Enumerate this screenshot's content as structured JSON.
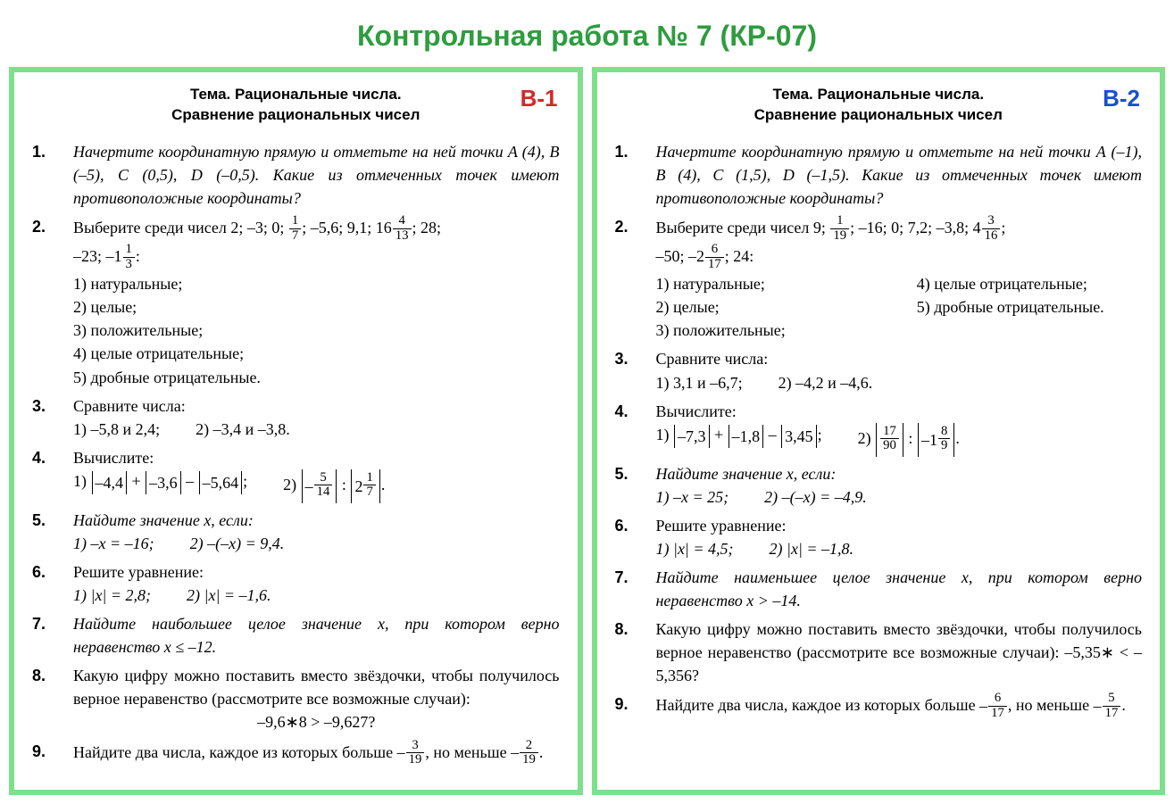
{
  "page": {
    "title": "Контрольная работа № 7 (КР-07)",
    "title_color": "#2e9c3f",
    "panel_border_color": "#7de08b",
    "panel_border_width": 6,
    "background": "#ffffff"
  },
  "variants": [
    {
      "badge": "В-1",
      "badge_color": "#d02a2a",
      "topic_label": "Тема.",
      "topic_line1": "Рациональные числа.",
      "topic_line2": "Сравнение рациональных чисел",
      "tasks": {
        "t1": "Начертите координатную прямую и отметьте на ней точки A (4), B (–5), C (0,5), D (–0,5). Какие из отмеченных точек имеют противоположные координаты?",
        "t2_lead_a": "Выберите среди чисел 2; –3; 0; ",
        "t2_frac1_num": "1",
        "t2_frac1_den": "7",
        "t2_lead_b": "; –5,6; 9,1; 16",
        "t2_frac2_num": "4",
        "t2_frac2_den": "13",
        "t2_lead_c": "; 28;",
        "t2_line2_a": "–23; –1",
        "t2_frac3_num": "1",
        "t2_frac3_den": "3",
        "t2_line2_b": ":",
        "t2_opt1": "1) натуральные;",
        "t2_opt2": "2) целые;",
        "t2_opt3": "3) положительные;",
        "t2_opt4": "4) целые отрицательные;",
        "t2_opt5": "5) дробные отрицательные.",
        "t3_lead": "Сравните числа:",
        "t3_opt1": "1) –5,8 и 2,4;",
        "t3_opt2": "2) –3,4 и –3,8.",
        "t4_lead": "Вычислите:",
        "t4_1_pre": "1) ",
        "t4_1_a": "–4,4",
        "t4_1_plus": " + ",
        "t4_1_b": "–3,6",
        "t4_1_minus": " – ",
        "t4_1_c": "–5,64",
        "t4_1_post": ";",
        "t4_2_pre": "2) ",
        "t4_2_f1_sign": "–",
        "t4_2_f1_num": "5",
        "t4_2_f1_den": "14",
        "t4_2_colon": " : ",
        "t4_2_f2_whole": "2",
        "t4_2_f2_num": "1",
        "t4_2_f2_den": "7",
        "t4_2_post": ".",
        "t5_lead": "Найдите значение x, если:",
        "t5_opt1": "1) –x = –16;",
        "t5_opt2": "2) –(–x) = 9,4.",
        "t6_lead": "Решите уравнение:",
        "t6_opt1": "1) |x| = 2,8;",
        "t6_opt2": "2) |x| = –1,6.",
        "t7": "Найдите наибольшее целое значение x, при котором верно неравенство x ≤ –12.",
        "t8_lead": "Какую цифру можно поставить вместо звёздочки, чтобы получилось верное неравенство (рассмотрите все возможные случаи):",
        "t8_expr": "–9,6∗8 > –9,627?",
        "t9_a": "Найдите два числа, каждое из которых больше ",
        "t9_f1_sign": "–",
        "t9_f1_num": "3",
        "t9_f1_den": "19",
        "t9_b": ", но меньше ",
        "t9_f2_sign": "–",
        "t9_f2_num": "2",
        "t9_f2_den": "19",
        "t9_c": "."
      }
    },
    {
      "badge": "В-2",
      "badge_color": "#1a4fd0",
      "topic_label": "Тема.",
      "topic_line1": "Рациональные числа.",
      "topic_line2": "Сравнение рациональных чисел",
      "tasks": {
        "t1": "Начертите координатную прямую и отметьте на ней точки A (–1), B (4), C (1,5), D (–1,5). Какие из отмеченных точек имеют противоположные координаты?",
        "t2_lead_a": "Выберите среди чисел 9; ",
        "t2_frac1_num": "1",
        "t2_frac1_den": "19",
        "t2_lead_b": "; –16; 0; 7,2; –3,8; 4",
        "t2_frac2_num": "3",
        "t2_frac2_den": "16",
        "t2_lead_c": ";",
        "t2_line2_a": "–50; –2",
        "t2_frac3_num": "6",
        "t2_frac3_den": "17",
        "t2_line2_b": "; 24:",
        "t2_opt1": "1) натуральные;",
        "t2_opt2": "2) целые;",
        "t2_opt3": "3) положительные;",
        "t2_opt4": "4) целые отрицательные;",
        "t2_opt5": "5) дробные отрицательные.",
        "t3_lead": "Сравните числа:",
        "t3_opt1": "1) 3,1 и –6,7;",
        "t3_opt2": "2) –4,2 и –4,6.",
        "t4_lead": "Вычислите:",
        "t4_1_pre": "1) ",
        "t4_1_a": "–7,3",
        "t4_1_plus": " + ",
        "t4_1_b": "–1,8",
        "t4_1_minus": " – ",
        "t4_1_c": "3,45",
        "t4_1_post": ";",
        "t4_2_pre": "2) ",
        "t4_2_f1_num": "17",
        "t4_2_f1_den": "90",
        "t4_2_colon": " : ",
        "t4_2_f2_sign": "–",
        "t4_2_f2_whole": "1",
        "t4_2_f2_num": "8",
        "t4_2_f2_den": "9",
        "t4_2_post": ".",
        "t5_lead": "Найдите значение x, если:",
        "t5_opt1": "1) –x = 25;",
        "t5_opt2": "2) –(–x) = –4,9.",
        "t6_lead": "Решите уравнение:",
        "t6_opt1": "1) |x| = 4,5;",
        "t6_opt2": "2) |x| = –1,8.",
        "t7": "Найдите наименьшее целое значение x, при котором верно неравенство x > –14.",
        "t8": "Какую цифру можно поставить вместо звёздочки, чтобы получилось верное неравенство (рассмотрите все возможные случаи): –5,35∗ < –5,356?",
        "t9_a": "Найдите два числа, каждое из которых больше ",
        "t9_f1_sign": "–",
        "t9_f1_num": "6",
        "t9_f1_den": "17",
        "t9_b": ", но меньше ",
        "t9_f2_sign": "–",
        "t9_f2_num": "5",
        "t9_f2_den": "17",
        "t9_c": "."
      }
    }
  ]
}
